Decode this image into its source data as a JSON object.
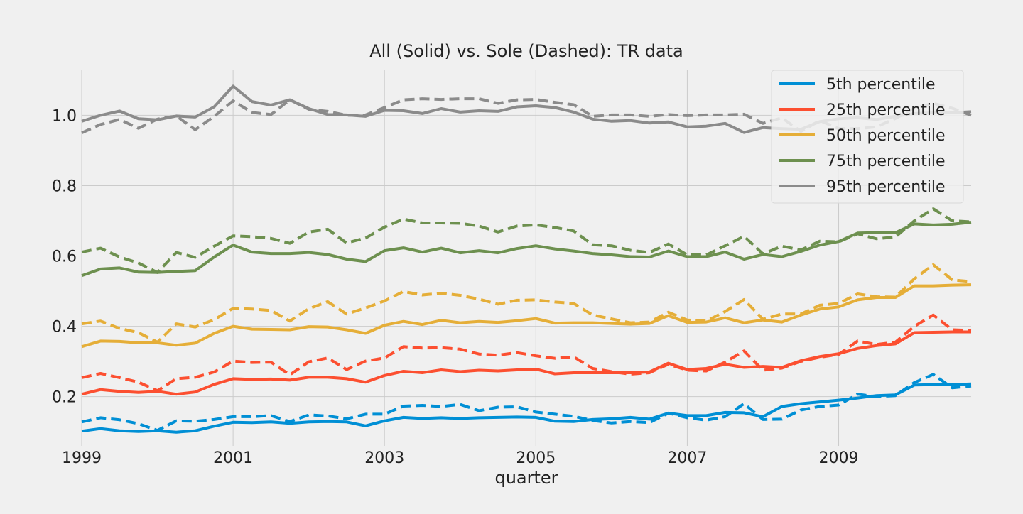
{
  "chart_data": {
    "type": "line",
    "title": "All (Solid) vs. Sole (Dashed): TR data",
    "xlabel": "quarter",
    "ylabel": "",
    "xlim": [
      1999.0,
      2010.75
    ],
    "ylim": [
      0.06,
      1.13
    ],
    "xticks": [
      1999,
      2001,
      2003,
      2005,
      2007,
      2009
    ],
    "xtick_labels": [
      "1999",
      "2001",
      "2003",
      "2005",
      "2007",
      "2009"
    ],
    "yticks": [
      0.2,
      0.4,
      0.6,
      0.8,
      1.0
    ],
    "ytick_labels": [
      "0.2",
      "0.4",
      "0.6",
      "0.8",
      "1.0"
    ],
    "grid": true,
    "legend_position": "top-right",
    "x": [
      1999.0,
      1999.25,
      1999.5,
      1999.75,
      2000.0,
      2000.25,
      2000.5,
      2000.75,
      2001.0,
      2001.25,
      2001.5,
      2001.75,
      2002.0,
      2002.25,
      2002.5,
      2002.75,
      2003.0,
      2003.25,
      2003.5,
      2003.75,
      2004.0,
      2004.25,
      2004.5,
      2004.75,
      2005.0,
      2005.25,
      2005.5,
      2005.75,
      2006.0,
      2006.25,
      2006.5,
      2006.75,
      2007.0,
      2007.25,
      2007.5,
      2007.75,
      2008.0,
      2008.25,
      2008.5,
      2008.75,
      2009.0,
      2009.25,
      2009.5,
      2009.75,
      2010.0,
      2010.25,
      2010.5,
      2010.75
    ],
    "series": [
      {
        "name": "5th percentile",
        "color": "#008fd5",
        "solid": [
          0.102,
          0.109,
          0.103,
          0.101,
          0.103,
          0.099,
          0.103,
          0.116,
          0.127,
          0.126,
          0.128,
          0.124,
          0.128,
          0.129,
          0.128,
          0.117,
          0.131,
          0.141,
          0.138,
          0.14,
          0.138,
          0.14,
          0.141,
          0.142,
          0.141,
          0.13,
          0.129,
          0.135,
          0.137,
          0.141,
          0.136,
          0.153,
          0.146,
          0.146,
          0.155,
          0.154,
          0.143,
          0.172,
          0.18,
          0.185,
          0.19,
          0.196,
          0.203,
          0.205,
          0.233,
          0.234,
          0.234,
          0.236
        ],
        "dashed": [
          0.128,
          0.14,
          0.134,
          0.123,
          0.104,
          0.131,
          0.13,
          0.135,
          0.143,
          0.143,
          0.146,
          0.129,
          0.148,
          0.145,
          0.137,
          0.15,
          0.15,
          0.173,
          0.175,
          0.172,
          0.178,
          0.16,
          0.17,
          0.171,
          0.156,
          0.15,
          0.144,
          0.132,
          0.125,
          0.129,
          0.126,
          0.153,
          0.14,
          0.133,
          0.143,
          0.18,
          0.135,
          0.136,
          0.162,
          0.172,
          0.176,
          0.207,
          0.2,
          0.203,
          0.24,
          0.263,
          0.225,
          0.23
        ]
      },
      {
        "name": "25th percentile",
        "color": "#fc4f30",
        "solid": [
          0.207,
          0.22,
          0.215,
          0.212,
          0.215,
          0.207,
          0.213,
          0.235,
          0.251,
          0.249,
          0.25,
          0.247,
          0.255,
          0.255,
          0.251,
          0.241,
          0.26,
          0.272,
          0.268,
          0.276,
          0.271,
          0.275,
          0.273,
          0.276,
          0.278,
          0.265,
          0.268,
          0.268,
          0.268,
          0.268,
          0.27,
          0.295,
          0.277,
          0.28,
          0.292,
          0.283,
          0.286,
          0.283,
          0.302,
          0.314,
          0.322,
          0.337,
          0.345,
          0.35,
          0.382,
          0.383,
          0.384,
          0.384
        ],
        "dashed": [
          0.254,
          0.266,
          0.254,
          0.241,
          0.217,
          0.251,
          0.255,
          0.27,
          0.301,
          0.297,
          0.298,
          0.262,
          0.299,
          0.31,
          0.277,
          0.301,
          0.31,
          0.342,
          0.338,
          0.339,
          0.335,
          0.321,
          0.318,
          0.325,
          0.316,
          0.309,
          0.313,
          0.28,
          0.271,
          0.264,
          0.268,
          0.292,
          0.275,
          0.273,
          0.298,
          0.33,
          0.275,
          0.281,
          0.3,
          0.312,
          0.32,
          0.358,
          0.348,
          0.355,
          0.4,
          0.432,
          0.39,
          0.388
        ]
      },
      {
        "name": "50th percentile",
        "color": "#e5ae38",
        "solid": [
          0.342,
          0.358,
          0.357,
          0.353,
          0.353,
          0.346,
          0.352,
          0.38,
          0.4,
          0.392,
          0.391,
          0.39,
          0.399,
          0.398,
          0.39,
          0.38,
          0.403,
          0.414,
          0.405,
          0.417,
          0.41,
          0.414,
          0.411,
          0.416,
          0.422,
          0.409,
          0.41,
          0.41,
          0.408,
          0.406,
          0.408,
          0.43,
          0.411,
          0.412,
          0.424,
          0.41,
          0.418,
          0.412,
          0.432,
          0.449,
          0.455,
          0.475,
          0.482,
          0.482,
          0.515,
          0.515,
          0.517,
          0.518
        ],
        "dashed": [
          0.407,
          0.415,
          0.394,
          0.382,
          0.355,
          0.407,
          0.398,
          0.419,
          0.451,
          0.449,
          0.445,
          0.415,
          0.45,
          0.47,
          0.435,
          0.452,
          0.472,
          0.499,
          0.489,
          0.494,
          0.488,
          0.477,
          0.463,
          0.474,
          0.475,
          0.469,
          0.465,
          0.432,
          0.421,
          0.41,
          0.412,
          0.44,
          0.418,
          0.415,
          0.442,
          0.476,
          0.42,
          0.435,
          0.435,
          0.46,
          0.465,
          0.492,
          0.484,
          0.483,
          0.535,
          0.575,
          0.532,
          0.527
        ]
      },
      {
        "name": "75th percentile",
        "color": "#6d904f",
        "solid": [
          0.544,
          0.563,
          0.566,
          0.554,
          0.553,
          0.556,
          0.558,
          0.597,
          0.631,
          0.611,
          0.607,
          0.607,
          0.61,
          0.604,
          0.591,
          0.584,
          0.615,
          0.623,
          0.611,
          0.622,
          0.609,
          0.615,
          0.609,
          0.621,
          0.629,
          0.62,
          0.614,
          0.607,
          0.603,
          0.598,
          0.597,
          0.614,
          0.598,
          0.598,
          0.611,
          0.591,
          0.604,
          0.598,
          0.613,
          0.631,
          0.641,
          0.665,
          0.666,
          0.666,
          0.691,
          0.688,
          0.69,
          0.696
        ],
        "dashed": [
          0.611,
          0.622,
          0.597,
          0.58,
          0.553,
          0.61,
          0.596,
          0.628,
          0.657,
          0.655,
          0.65,
          0.636,
          0.668,
          0.676,
          0.637,
          0.651,
          0.682,
          0.705,
          0.694,
          0.694,
          0.693,
          0.685,
          0.668,
          0.685,
          0.688,
          0.681,
          0.671,
          0.632,
          0.629,
          0.616,
          0.61,
          0.634,
          0.603,
          0.603,
          0.629,
          0.656,
          0.606,
          0.628,
          0.617,
          0.642,
          0.64,
          0.663,
          0.649,
          0.654,
          0.7,
          0.734,
          0.7,
          0.697
        ]
      },
      {
        "name": "95th percentile",
        "color": "#8b8b8b",
        "solid": [
          0.983,
          1.0,
          1.012,
          0.99,
          0.987,
          0.998,
          0.995,
          1.024,
          1.083,
          1.039,
          1.029,
          1.044,
          1.019,
          1.002,
          1.001,
          0.997,
          1.014,
          1.013,
          1.005,
          1.019,
          1.009,
          1.013,
          1.011,
          1.024,
          1.027,
          1.022,
          1.009,
          0.989,
          0.983,
          0.985,
          0.978,
          0.981,
          0.967,
          0.969,
          0.977,
          0.951,
          0.965,
          0.962,
          0.96,
          0.982,
          0.99,
          0.993,
          0.988,
          0.997,
          1.005,
          1.007,
          1.007,
          1.01
        ],
        "dashed": [
          0.95,
          0.974,
          0.988,
          0.963,
          0.989,
          0.998,
          0.959,
          0.997,
          1.041,
          1.008,
          1.002,
          1.044,
          1.017,
          1.011,
          1.0,
          1.001,
          1.022,
          1.044,
          1.047,
          1.045,
          1.047,
          1.047,
          1.034,
          1.044,
          1.045,
          1.037,
          1.03,
          0.997,
          1.001,
          1.001,
          0.997,
          1.002,
          0.999,
          1.001,
          1.001,
          1.003,
          0.977,
          0.993,
          0.954,
          0.985,
          0.962,
          0.962,
          0.967,
          0.991,
          1.02,
          1.034,
          1.02,
          1.0
        ]
      }
    ]
  }
}
